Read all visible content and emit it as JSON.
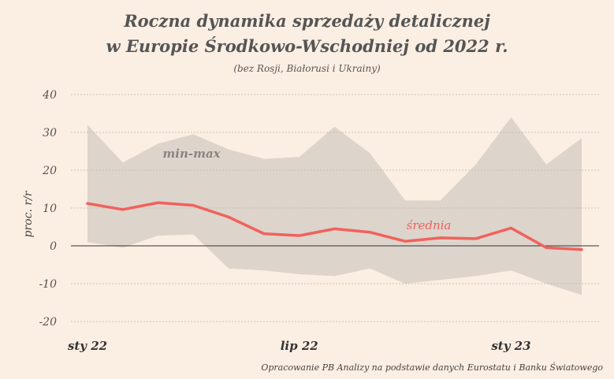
{
  "title_line1": "Roczna dynamika sprzedaży detalicznej",
  "title_line2": "w Europie Środkowo-Wschodniej  od 2022 r.",
  "subtitle": "(bez Rosji, Białorusi i Ukrainy)",
  "source": "Opracowanie PB Analizy na podstawie danych Eurostatu i Banku Światowego",
  "chart_data": {
    "type": "area",
    "ylabel": "proc. r/r",
    "ylim": [
      -20,
      40
    ],
    "yticks": [
      -20,
      -10,
      0,
      10,
      20,
      30,
      40
    ],
    "x": [
      "2022-01",
      "2022-02",
      "2022-03",
      "2022-04",
      "2022-05",
      "2022-06",
      "2022-07",
      "2022-08",
      "2022-09",
      "2022-10",
      "2022-11",
      "2022-12",
      "2023-01",
      "2023-02",
      "2023-03"
    ],
    "xtick_labels": [
      {
        "x": "2022-01",
        "label": "sty 22"
      },
      {
        "x": "2022-07",
        "label": "lip 22"
      },
      {
        "x": "2023-01",
        "label": "sty 23"
      }
    ],
    "band": {
      "label": "min-max",
      "max": [
        32,
        22,
        27,
        29.5,
        25.5,
        23,
        23.5,
        31.5,
        24.5,
        12,
        12,
        21.5,
        34,
        21.5,
        28.5
      ],
      "min": [
        1,
        -0.5,
        2.7,
        3,
        -6,
        -6.5,
        -7.5,
        -8,
        -6,
        -10,
        -9,
        -8,
        -6.5,
        -10,
        -13
      ]
    },
    "series": [
      {
        "name": "średnia",
        "values": [
          11.2,
          9.6,
          11.4,
          10.7,
          7.6,
          3.2,
          2.7,
          4.5,
          3.6,
          1.2,
          2.1,
          1.9,
          4.7,
          -0.5,
          -1.0
        ]
      }
    ],
    "colors": {
      "band": "#ddd4cc",
      "line": "#f0625c",
      "grid": "#bdb4ab",
      "zero": "#333333",
      "band_label": "#8a8480"
    }
  }
}
